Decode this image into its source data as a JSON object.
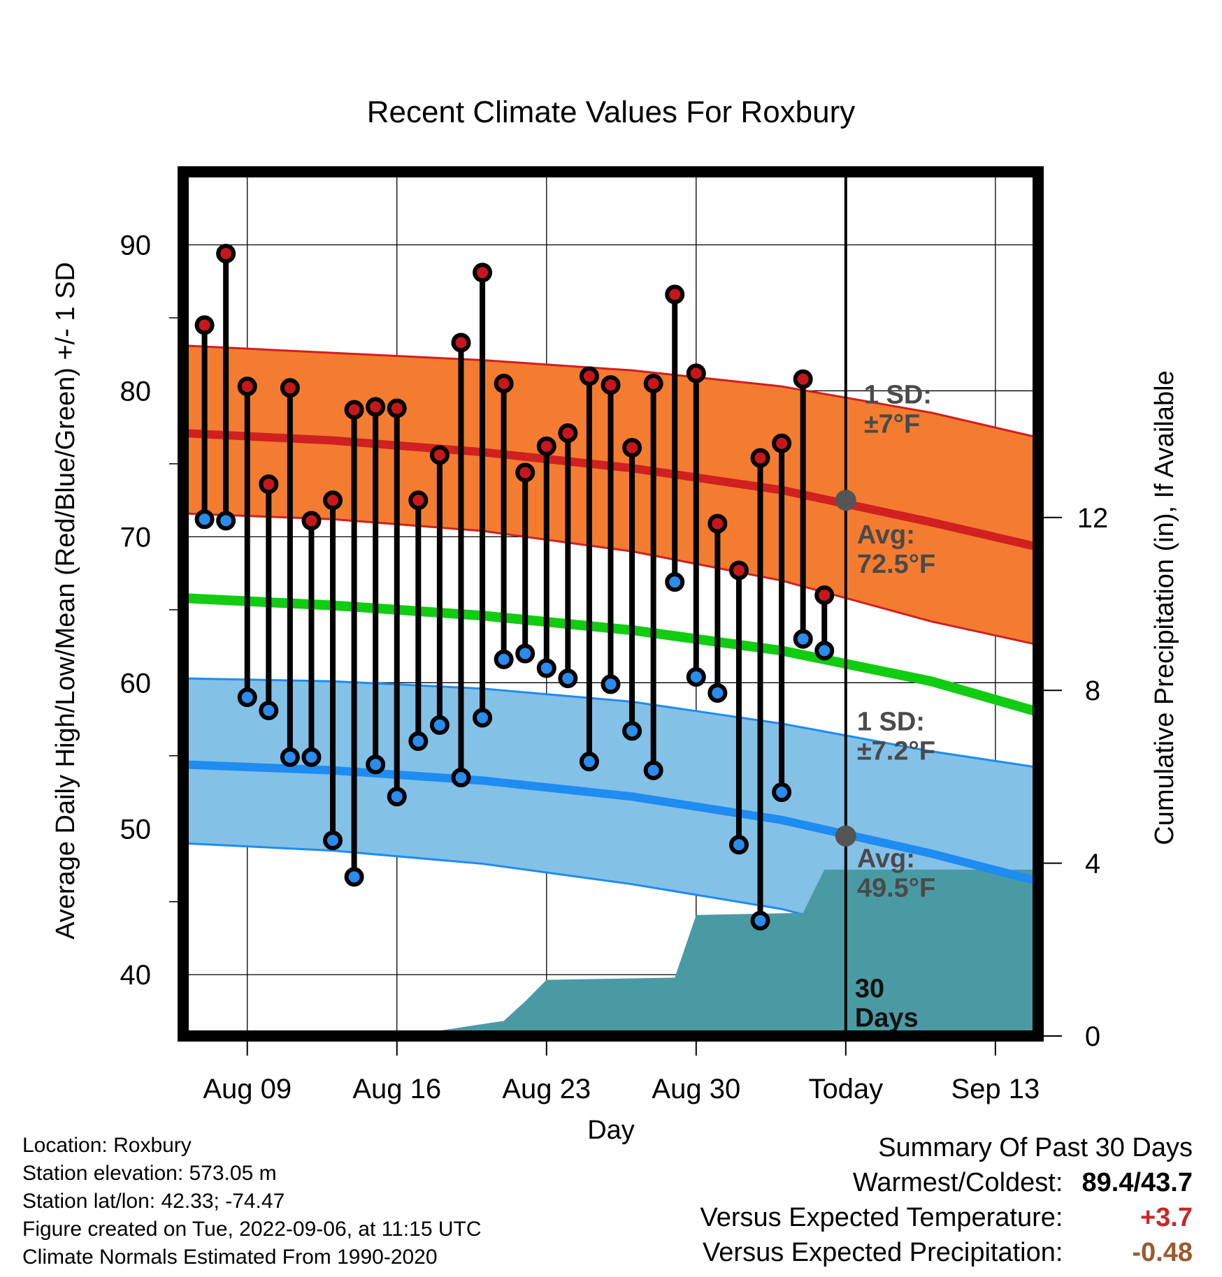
{
  "chart_data": {
    "type": "line",
    "title": "Recent Climate Values For Roxbury",
    "xlabel": "Day",
    "ylabel_left": "Average Daily High/Low/Mean (Red/Blue/Green) +/- 1 SD",
    "ylabel_right": "Cumulative Precipitation (in), If Available",
    "xlim": [
      "2022-08-06",
      "2022-09-15"
    ],
    "ylim_left": [
      35.8,
      95
    ],
    "ylim_right": [
      0,
      20
    ],
    "x_ticks": [
      {
        "date": "2022-08-09",
        "label": "Aug 09"
      },
      {
        "date": "2022-08-16",
        "label": "Aug 16"
      },
      {
        "date": "2022-08-23",
        "label": "Aug 23"
      },
      {
        "date": "2022-08-30",
        "label": "Aug 30"
      },
      {
        "date": "2022-09-06",
        "label": "Today"
      },
      {
        "date": "2022-09-13",
        "label": "Sep 13"
      }
    ],
    "y_ticks_left": [
      40,
      50,
      60,
      70,
      80,
      90
    ],
    "y_ticks_right": [
      0,
      4,
      8,
      12
    ],
    "grid": true,
    "today": "2022-09-06",
    "daily_high": [
      [
        "2022-08-07",
        84.5
      ],
      [
        "2022-08-08",
        89.4
      ],
      [
        "2022-08-09",
        80.3
      ],
      [
        "2022-08-10",
        73.6
      ],
      [
        "2022-08-11",
        80.2
      ],
      [
        "2022-08-12",
        71.1
      ],
      [
        "2022-08-13",
        72.5
      ],
      [
        "2022-08-14",
        78.7
      ],
      [
        "2022-08-15",
        78.9
      ],
      [
        "2022-08-16",
        78.8
      ],
      [
        "2022-08-17",
        72.5
      ],
      [
        "2022-08-18",
        75.6
      ],
      [
        "2022-08-19",
        83.3
      ],
      [
        "2022-08-20",
        88.1
      ],
      [
        "2022-08-21",
        80.5
      ],
      [
        "2022-08-22",
        74.4
      ],
      [
        "2022-08-23",
        76.2
      ],
      [
        "2022-08-24",
        77.1
      ],
      [
        "2022-08-25",
        81.0
      ],
      [
        "2022-08-26",
        80.4
      ],
      [
        "2022-08-27",
        76.1
      ],
      [
        "2022-08-28",
        80.5
      ],
      [
        "2022-08-29",
        86.6
      ],
      [
        "2022-08-30",
        81.2
      ],
      [
        "2022-08-31",
        70.9
      ],
      [
        "2022-09-01",
        67.7
      ],
      [
        "2022-09-02",
        75.4
      ],
      [
        "2022-09-03",
        76.4
      ],
      [
        "2022-09-04",
        80.8
      ],
      [
        "2022-09-05",
        66.0
      ]
    ],
    "daily_low": [
      [
        "2022-08-07",
        71.2
      ],
      [
        "2022-08-08",
        71.1
      ],
      [
        "2022-08-09",
        59.0
      ],
      [
        "2022-08-10",
        58.1
      ],
      [
        "2022-08-11",
        54.9
      ],
      [
        "2022-08-12",
        54.9
      ],
      [
        "2022-08-13",
        49.2
      ],
      [
        "2022-08-14",
        46.7
      ],
      [
        "2022-08-15",
        54.4
      ],
      [
        "2022-08-16",
        52.2
      ],
      [
        "2022-08-17",
        56.0
      ],
      [
        "2022-08-18",
        57.1
      ],
      [
        "2022-08-19",
        53.5
      ],
      [
        "2022-08-20",
        57.6
      ],
      [
        "2022-08-21",
        61.6
      ],
      [
        "2022-08-22",
        62.0
      ],
      [
        "2022-08-23",
        61.0
      ],
      [
        "2022-08-24",
        60.3
      ],
      [
        "2022-08-25",
        54.6
      ],
      [
        "2022-08-26",
        59.9
      ],
      [
        "2022-08-27",
        56.7
      ],
      [
        "2022-08-28",
        54.0
      ],
      [
        "2022-08-29",
        66.9
      ],
      [
        "2022-08-30",
        60.4
      ],
      [
        "2022-08-31",
        59.3
      ],
      [
        "2022-09-01",
        48.9
      ],
      [
        "2022-09-02",
        43.7
      ],
      [
        "2022-09-03",
        52.5
      ],
      [
        "2022-09-04",
        63.0
      ],
      [
        "2022-09-05",
        62.2
      ]
    ],
    "normal_high": {
      "x": [
        "2022-08-06",
        "2022-08-13",
        "2022-08-20",
        "2022-08-27",
        "2022-09-03",
        "2022-09-10",
        "2022-09-15"
      ],
      "mean": [
        77.1,
        76.6,
        75.8,
        74.7,
        73.2,
        71.0,
        69.3
      ],
      "upper": [
        83.1,
        82.6,
        82.1,
        81.4,
        80.3,
        78.5,
        76.8
      ],
      "lower": [
        71.6,
        71.2,
        70.4,
        69.0,
        67.0,
        64.2,
        62.6
      ]
    },
    "normal_mean": {
      "x": [
        "2022-08-06",
        "2022-08-13",
        "2022-08-20",
        "2022-08-27",
        "2022-09-03",
        "2022-09-10",
        "2022-09-15"
      ],
      "values": [
        65.8,
        65.3,
        64.6,
        63.6,
        62.2,
        60.1,
        58.0
      ]
    },
    "normal_low": {
      "x": [
        "2022-08-06",
        "2022-08-13",
        "2022-08-20",
        "2022-08-27",
        "2022-09-03",
        "2022-09-10",
        "2022-09-15"
      ],
      "mean": [
        54.4,
        54.0,
        53.3,
        52.2,
        50.6,
        48.3,
        46.4
      ],
      "upper": [
        60.3,
        60.1,
        59.6,
        58.7,
        57.2,
        55.3,
        54.2
      ],
      "lower": [
        49.0,
        48.5,
        47.6,
        46.2,
        44.5,
        41.9,
        40.4
      ]
    },
    "cumulative_precipitation_in": [
      [
        "2022-08-06",
        0.0
      ],
      [
        "2022-08-08",
        0.05
      ],
      [
        "2022-08-17",
        0.05
      ],
      [
        "2022-08-19",
        0.2
      ],
      [
        "2022-08-21",
        0.35
      ],
      [
        "2022-08-22",
        0.8
      ],
      [
        "2022-08-23",
        1.3
      ],
      [
        "2022-08-29",
        1.35
      ],
      [
        "2022-08-30",
        2.8
      ],
      [
        "2022-09-04",
        2.85
      ],
      [
        "2022-09-05",
        3.85
      ],
      [
        "2022-09-15",
        3.85
      ]
    ],
    "annotations": {
      "high_sd": [
        "1 SD:",
        "±7°F"
      ],
      "high_avg": [
        "Avg:",
        "72.5°F"
      ],
      "low_sd": [
        "1 SD:",
        "±7.2°F"
      ],
      "low_avg": [
        "Avg:",
        "49.5°F"
      ],
      "window": [
        "30",
        "Days"
      ]
    },
    "today_points": {
      "high_avg": 72.5,
      "low_avg": 49.5
    }
  },
  "colors": {
    "high_band": "#f47c30",
    "high_line": "#d02020",
    "mean_line": "#11cc11",
    "low_band": "#84c1e7",
    "low_line": "#1e8cf0",
    "precip": "#4a9aa3",
    "high_marker": "#c8161d",
    "low_marker": "#2a8cec",
    "today_marker": "#555555",
    "warm_text": "#c62828",
    "precip_text": "#9b5a2e"
  },
  "footer": {
    "location": "Location: Roxbury",
    "elevation": "Station elevation: 573.05 m",
    "latlon": "Station lat/lon: 42.33; -74.47",
    "created": "Figure created on Tue, 2022-09-06, at 11:15 UTC",
    "normals": "Climate Normals Estimated From 1990-2020"
  },
  "summary": {
    "heading": "Summary Of Past 30 Days",
    "warm_cold_label": "Warmest/Coldest:",
    "warm_cold_value": "89.4/43.7",
    "temp_label": "Versus Expected Temperature:",
    "temp_value": "+3.7",
    "precip_label": "Versus Expected Precipitation:",
    "precip_value": "-0.48"
  }
}
